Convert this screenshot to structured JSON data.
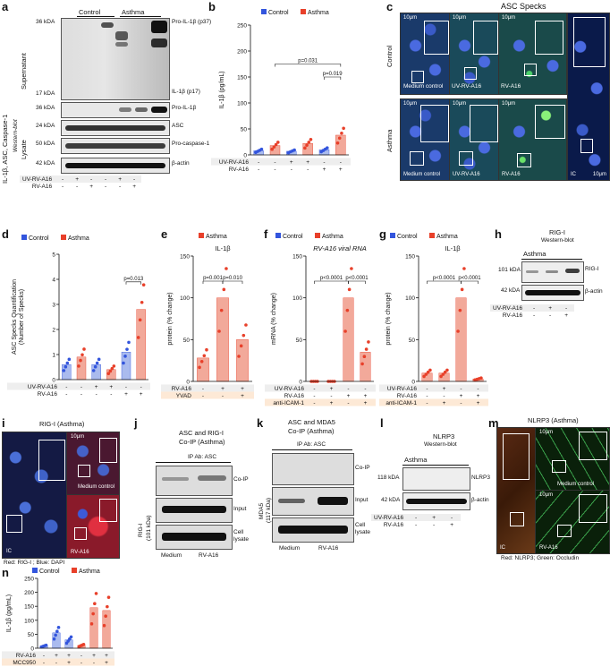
{
  "panels": {
    "a": {
      "letter": "a",
      "side_label": "IL-1β, ASC, Caspase-1",
      "side_sub": "Western-blot",
      "groups": [
        "Control",
        "Asthma"
      ],
      "sections": [
        "Supernatant",
        "Lysate"
      ],
      "left_marks": [
        "36 kDA",
        "17 kDA",
        "36 kDA",
        "24 kDA",
        "50 kDA",
        "42 kDA"
      ],
      "right_labels": [
        "Pro-IL-1β (p37)",
        "IL-1β (p17)",
        "Pro-IL-1β",
        "ASC",
        "Pro-caspase-1",
        "β-actin"
      ],
      "rows": [
        {
          "name": "UV-RV-A16",
          "vals": [
            "-",
            "+",
            "-",
            "-",
            "+",
            "-"
          ]
        },
        {
          "name": "RV-A16",
          "vals": [
            "-",
            "-",
            "+",
            "-",
            "-",
            "+"
          ]
        }
      ]
    },
    "b": {
      "letter": "b",
      "legend": [
        "Control",
        "Asthma"
      ],
      "ylabel": "IL-1β (pg/mL)",
      "pvals": [
        "p=0.031",
        "p=0.019"
      ],
      "rows": [
        {
          "name": "UV-RV-A16",
          "vals": [
            "-",
            "-",
            "+",
            "+",
            "-",
            "-"
          ]
        },
        {
          "name": "RV-A16",
          "vals": [
            "-",
            "-",
            "-",
            "-",
            "+",
            "+"
          ]
        }
      ]
    },
    "c": {
      "letter": "c",
      "title": "ASC Specks",
      "row_labels": [
        "Control",
        "Asthma"
      ],
      "captions": [
        "Medium control",
        "UV-RV-A16",
        "RV-A16",
        "Medium control",
        "UV-RV-A16",
        "RV-A16"
      ],
      "scale": "10μm",
      "ic": "IC"
    },
    "d": {
      "letter": "d",
      "legend": [
        "Control",
        "Asthma"
      ],
      "ylabel": "ASC Specks Quantification",
      "ylabel2": "(Number of Specks)",
      "pval": "p=0.013",
      "rows": [
        {
          "name": "UV-RV-A16",
          "vals": [
            "-",
            "-",
            "+",
            "+",
            "-",
            "-"
          ]
        },
        {
          "name": "RV-A16",
          "vals": [
            "-",
            "-",
            "-",
            "-",
            "+",
            "+"
          ]
        }
      ]
    },
    "e": {
      "letter": "e",
      "legend": [
        "Asthma"
      ],
      "title": "IL-1β",
      "ylabel": "protein (% change)",
      "pvals": [
        "p=0.001",
        "p=0.010"
      ],
      "rows": [
        {
          "name": "RV-A16",
          "vals": [
            "-",
            "+",
            "+"
          ]
        },
        {
          "name": "YVAD",
          "vals": [
            "-",
            "-",
            "+"
          ]
        }
      ]
    },
    "f": {
      "letter": "f",
      "legend": [
        "Control",
        "Asthma"
      ],
      "title": "RV-A16 viral RNA",
      "ylabel": "mRNA (% change)",
      "pvals": [
        "p<0.0001",
        "p<0.0001"
      ],
      "rows": [
        {
          "name": "UV-RV-A16",
          "vals": [
            "-",
            "+",
            "-",
            "-"
          ]
        },
        {
          "name": "RV-A16",
          "vals": [
            "-",
            "-",
            "+",
            "+"
          ]
        },
        {
          "name": "anti-ICAM-1",
          "vals": [
            "-",
            "+",
            "-",
            "+"
          ]
        }
      ]
    },
    "g": {
      "letter": "g",
      "legend": [
        "Control",
        "Asthma"
      ],
      "title": "IL-1β",
      "ylabel": "protein (% change)",
      "pvals": [
        "p<0.0001",
        "p<0.0001"
      ],
      "rows": [
        {
          "name": "UV-RV-A16",
          "vals": [
            "-",
            "+",
            "-",
            "-"
          ]
        },
        {
          "name": "RV-A16",
          "vals": [
            "-",
            "-",
            "+",
            "+"
          ]
        },
        {
          "name": "anti-ICAM-1",
          "vals": [
            "-",
            "+",
            "-",
            "+"
          ]
        }
      ]
    },
    "h": {
      "letter": "h",
      "title": "RIG-I",
      "subtitle": "Western-blot",
      "group": "Asthma",
      "left_marks": [
        "101 kDA",
        "42 kDA"
      ],
      "right_labels": [
        "RIG-I",
        "β-actin"
      ],
      "rows": [
        {
          "name": "UV-RV-A16",
          "vals": [
            "-",
            "+",
            "-"
          ]
        },
        {
          "name": "RV-A16",
          "vals": [
            "-",
            "-",
            "+"
          ]
        }
      ]
    },
    "i": {
      "letter": "i",
      "title": "RIG-I (Asthma)",
      "captions": [
        "IC",
        "Medium control",
        "RV-A16"
      ],
      "scale": "10μm",
      "footer": "Red: RIG-I ; Blue: DAPI"
    },
    "j": {
      "letter": "j",
      "title": "ASC and RIG-I",
      "title2": "Co-IP (Asthma)",
      "ip": "IP Ab: ASC",
      "ylab": "RIG-I",
      "ylab2": "(101 kDa)",
      "right_labels": [
        "Co-IP",
        "Input",
        "Cell",
        "lysate"
      ],
      "lanes": [
        "Medium",
        "RV-A16"
      ]
    },
    "k": {
      "letter": "k",
      "title": "ASC and MDA5",
      "title2": "Co-IP (Asthma)",
      "ip": "IP Ab: ASC",
      "ylab": "MDA5",
      "ylab2": "(117 kDa)",
      "right_labels": [
        "Co-IP",
        "Input",
        "Cell",
        "lysate"
      ],
      "lanes": [
        "Medium",
        "RV-A16"
      ]
    },
    "l": {
      "letter": "l",
      "title": "NLRP3",
      "subtitle": "Western-blot",
      "group": "Asthma",
      "left_marks": [
        "118 kDA",
        "42 kDA"
      ],
      "right_labels": [
        "NLRP3",
        "β-actin"
      ],
      "rows": [
        {
          "name": "UV-RV-A16",
          "vals": [
            "-",
            "+",
            "-"
          ]
        },
        {
          "name": "RV-A16",
          "vals": [
            "-",
            "-",
            "+"
          ]
        }
      ]
    },
    "m": {
      "letter": "m",
      "title": "NLRP3 (Asthma)",
      "captions": [
        "IC",
        "Medium control",
        "RV-A16"
      ],
      "scale": "10μm",
      "footer": "Red: NLRP3; Green: Occludin"
    },
    "n": {
      "letter": "n",
      "legend": [
        "Control",
        "Asthma"
      ],
      "ylabel": "IL-1β (pg/mL)",
      "rows": [
        {
          "name": "RV-A16",
          "vals": [
            "-",
            "+",
            "+",
            "-",
            "+",
            "+"
          ]
        },
        {
          "name": "MCC950",
          "vals": [
            "-",
            "-",
            "+",
            "-",
            "-",
            "+"
          ]
        }
      ]
    }
  },
  "colors": {
    "control": "#3355dd",
    "asthma": "#e8402a",
    "control_bar": "#aabbee",
    "asthma_bar": "#f2a99a"
  },
  "chart_data": [
    {
      "type": "bar",
      "panel": "b",
      "categories": [
        "1",
        "2",
        "3",
        "4",
        "5",
        "6"
      ],
      "series": [
        {
          "name": "Control",
          "values": [
            8,
            null,
            7,
            null,
            10,
            null
          ]
        },
        {
          "name": "Asthma",
          "values": [
            null,
            18,
            null,
            22,
            null,
            38
          ]
        }
      ],
      "ylabel": "IL-1β (pg/mL)",
      "ylim": [
        0,
        250
      ],
      "yticks": [
        0,
        50,
        100,
        150,
        200,
        250
      ]
    },
    {
      "type": "bar",
      "panel": "d",
      "categories": [
        "1",
        "2",
        "3",
        "4",
        "5",
        "6"
      ],
      "series": [
        {
          "name": "Control",
          "values": [
            0.6,
            null,
            0.6,
            null,
            1.1,
            null
          ]
        },
        {
          "name": "Asthma",
          "values": [
            null,
            0.9,
            null,
            0.4,
            null,
            2.8
          ]
        }
      ],
      "ylabel": "ASC Specks Quantification (Number of Specks)",
      "ylim": [
        0,
        5
      ],
      "yticks": [
        0,
        1,
        2,
        3,
        4,
        5
      ]
    },
    {
      "type": "bar",
      "panel": "e",
      "categories": [
        "1",
        "2",
        "3"
      ],
      "series": [
        {
          "name": "Asthma",
          "values": [
            28,
            100,
            50
          ]
        }
      ],
      "ylabel": "protein (% change)",
      "ylim": [
        0,
        150
      ],
      "yticks": [
        0,
        50,
        100,
        150
      ]
    },
    {
      "type": "bar",
      "panel": "f",
      "categories": [
        "1",
        "2",
        "3",
        "4"
      ],
      "series": [
        {
          "name": "Asthma",
          "values": [
            0,
            0,
            100,
            35
          ]
        }
      ],
      "ylabel": "mRNA (% change)",
      "ylim": [
        0,
        150
      ],
      "yticks": [
        0,
        50,
        100,
        150
      ]
    },
    {
      "type": "bar",
      "panel": "g",
      "categories": [
        "1",
        "2",
        "3",
        "4"
      ],
      "series": [
        {
          "name": "Asthma",
          "values": [
            10,
            10,
            100,
            3
          ]
        }
      ],
      "ylabel": "protein (% change)",
      "ylim": [
        0,
        150
      ],
      "yticks": [
        0,
        50,
        100,
        150
      ]
    },
    {
      "type": "bar",
      "panel": "n",
      "categories": [
        "1",
        "2",
        "3",
        "4",
        "5",
        "6"
      ],
      "series": [
        {
          "name": "Control",
          "values": [
            8,
            55,
            30,
            null,
            null,
            null
          ]
        },
        {
          "name": "Asthma",
          "values": [
            null,
            null,
            null,
            10,
            145,
            135
          ]
        }
      ],
      "ylabel": "IL-1β (pg/mL)",
      "ylim": [
        0,
        250
      ],
      "yticks": [
        0,
        50,
        100,
        150,
        200,
        250
      ]
    }
  ]
}
